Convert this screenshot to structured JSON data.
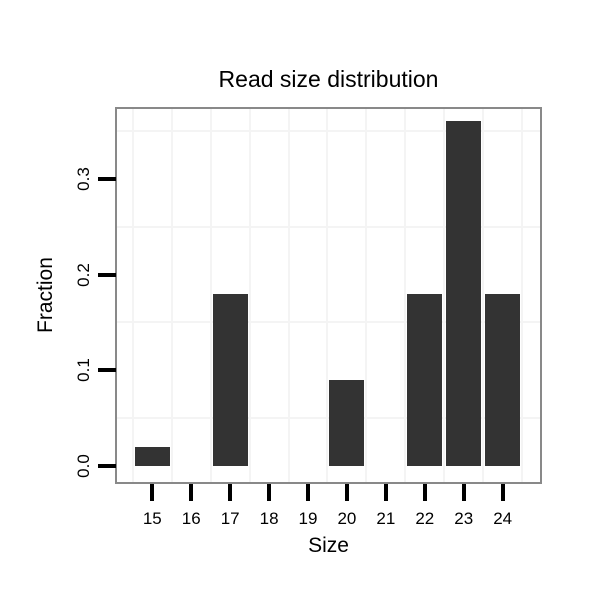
{
  "chart_data": {
    "type": "bar",
    "title": "Read size distribution",
    "xlabel": "Size",
    "ylabel": "Fraction",
    "categories": [
      "15",
      "16",
      "17",
      "18",
      "19",
      "20",
      "21",
      "22",
      "23",
      "24"
    ],
    "values": [
      0.02,
      0,
      0.18,
      0,
      0,
      0.09,
      0,
      0.18,
      0.36,
      0.18
    ],
    "y_tick_labels": [
      "0.0",
      "0.1",
      "0.2",
      "0.3"
    ],
    "y_tick_values": [
      0,
      0.1,
      0.2,
      0.3
    ],
    "minor_gridline_values": [
      0.05,
      0.15,
      0.25,
      0.35
    ],
    "ylim": [
      -0.017,
      0.374
    ],
    "grid": "minor",
    "legend": "none",
    "colors": {
      "bar_fill": "#333333",
      "axis_tick": "#000000",
      "text": "#000000",
      "panel_border": "#898989",
      "gridline": "#f4f4f4",
      "background": "#ffffff"
    }
  }
}
